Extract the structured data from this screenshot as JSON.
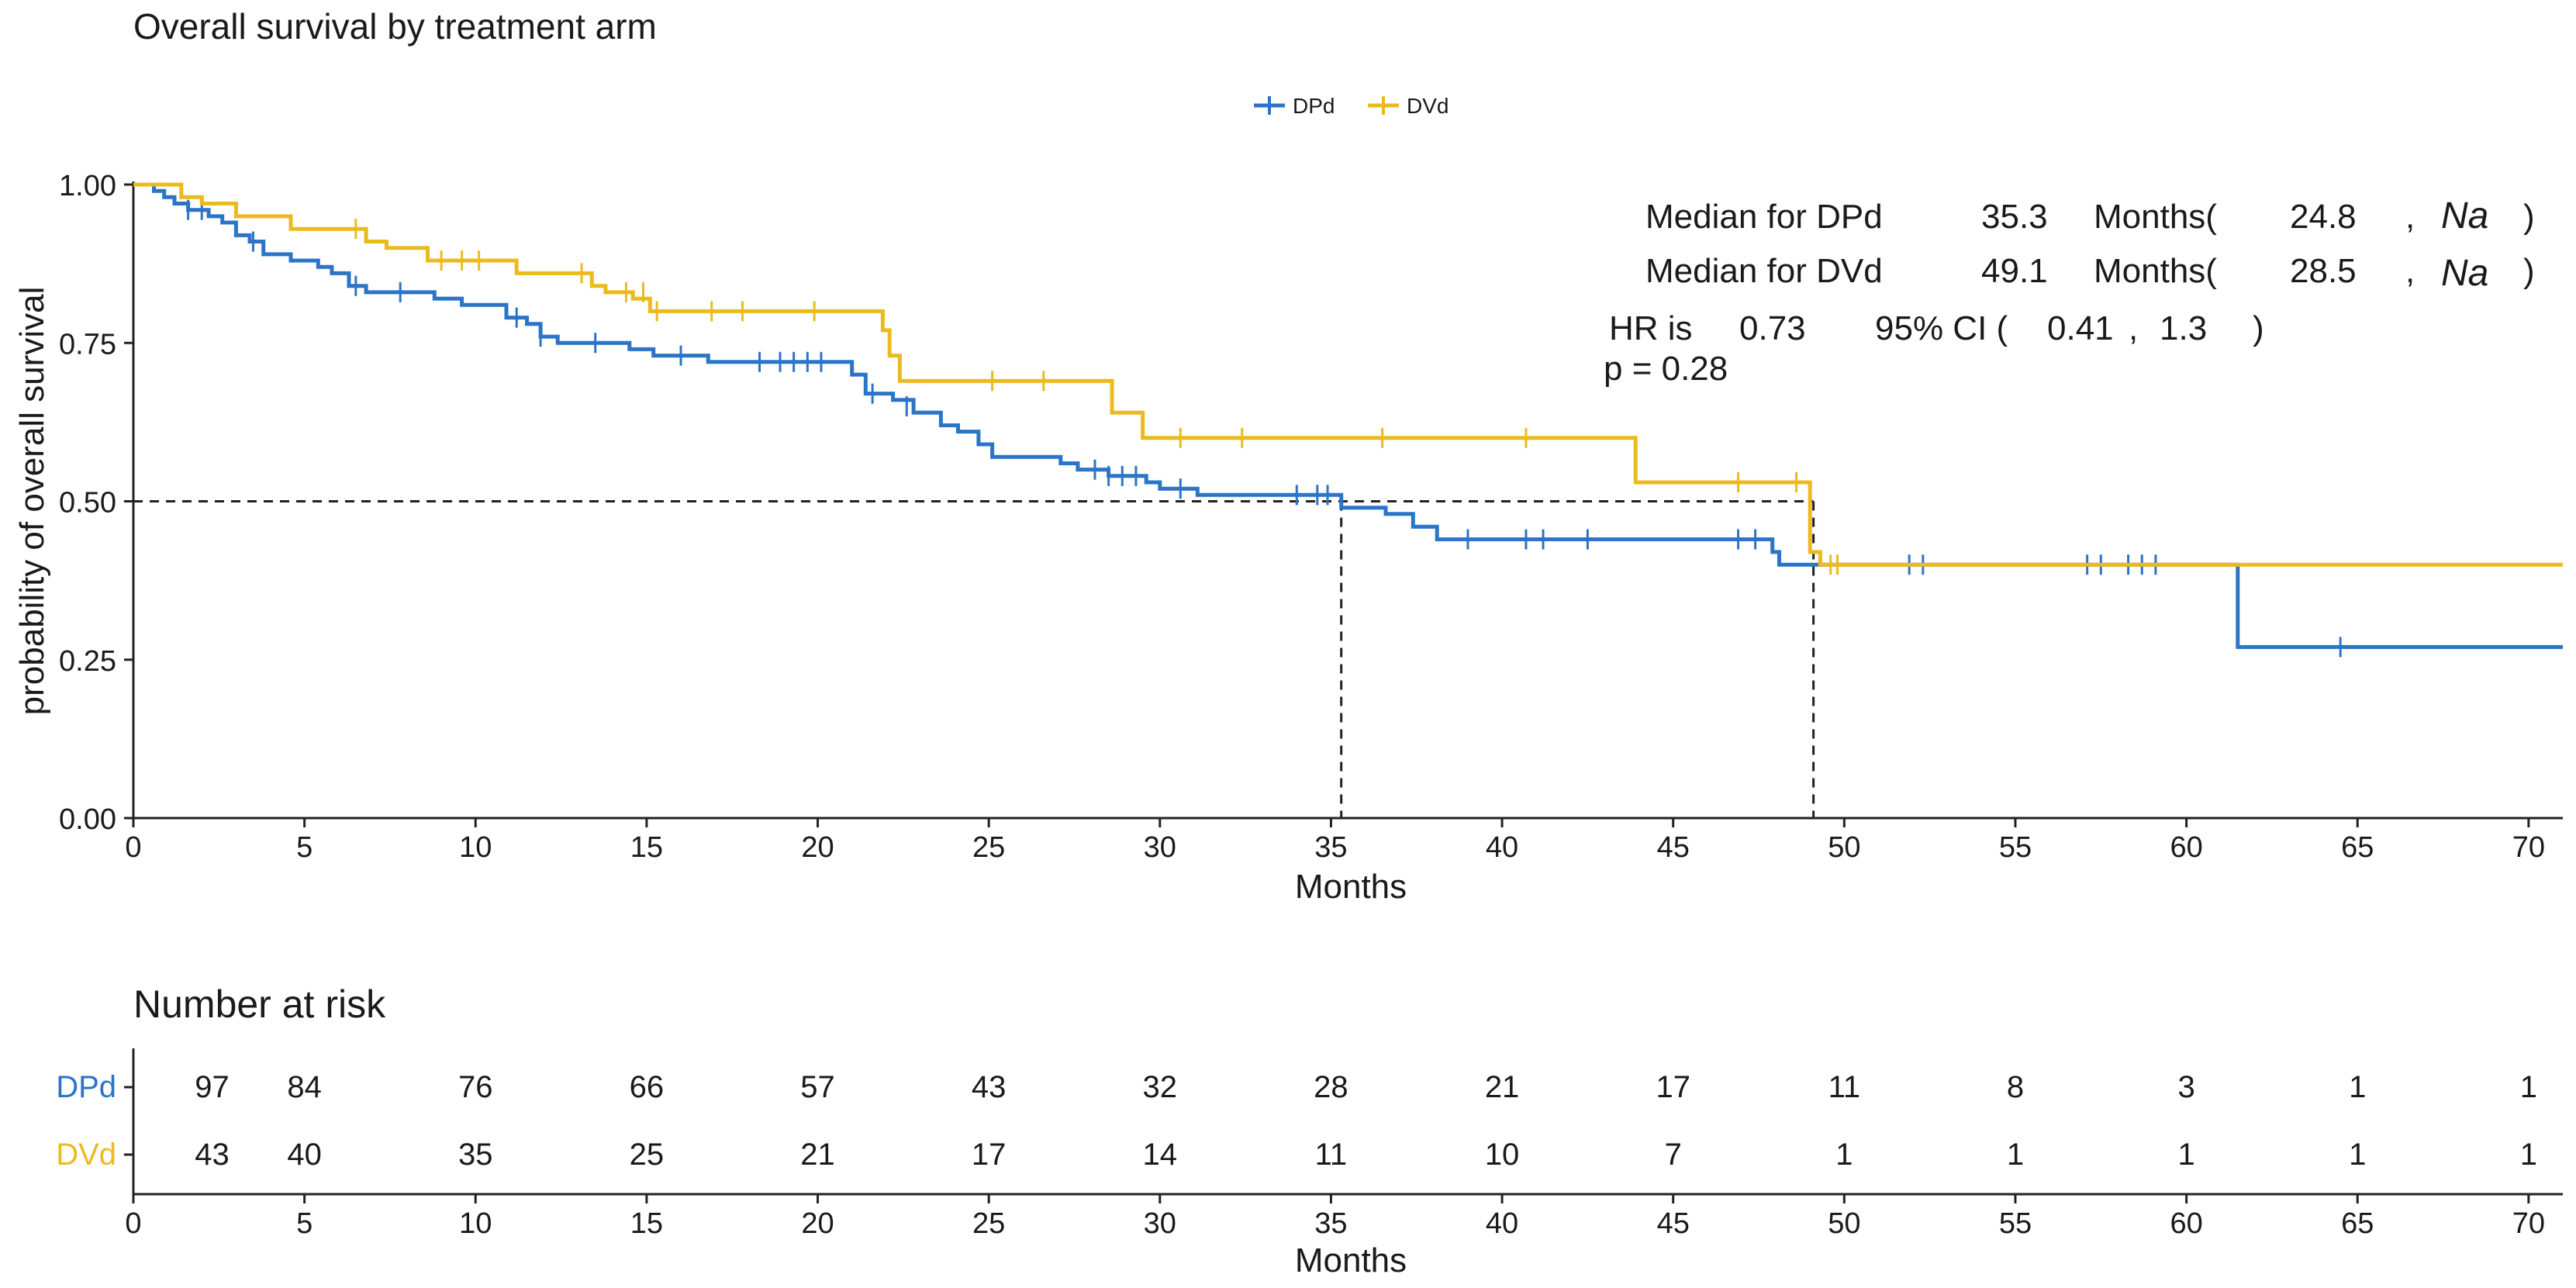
{
  "chart_data": [
    {
      "type": "line",
      "title": "Overall survival by treatment arm",
      "xlabel": "Months",
      "ylabel": "probability of overall survival",
      "xlim": [
        0,
        71
      ],
      "ylim": [
        0,
        1
      ],
      "xticks": [
        0,
        5,
        10,
        15,
        20,
        25,
        30,
        35,
        40,
        45,
        50,
        55,
        60,
        65,
        70
      ],
      "yticks": [
        "0.00",
        "0.25",
        "0.50",
        "0.75",
        "1.00"
      ],
      "grid": false,
      "legend_position": "top",
      "step": true,
      "median_reference_line": {
        "y": 0.5,
        "x_ends": [
          35.3,
          49.1
        ]
      },
      "series": [
        {
          "name": "DPd",
          "color": "#2b74c7",
          "points": [
            [
              0,
              1.0
            ],
            [
              0.6,
              0.99
            ],
            [
              0.9,
              0.98
            ],
            [
              1.2,
              0.97
            ],
            [
              1.6,
              0.96
            ],
            [
              2.2,
              0.95
            ],
            [
              2.6,
              0.94
            ],
            [
              3.0,
              0.92
            ],
            [
              3.4,
              0.91
            ],
            [
              3.8,
              0.89
            ],
            [
              4.6,
              0.88
            ],
            [
              5.4,
              0.87
            ],
            [
              5.8,
              0.86
            ],
            [
              6.3,
              0.84
            ],
            [
              6.8,
              0.83
            ],
            [
              7.8,
              0.83
            ],
            [
              8.8,
              0.82
            ],
            [
              9.6,
              0.81
            ],
            [
              10.9,
              0.79
            ],
            [
              11.5,
              0.78
            ],
            [
              11.9,
              0.76
            ],
            [
              12.4,
              0.75
            ],
            [
              14.5,
              0.74
            ],
            [
              15.2,
              0.73
            ],
            [
              16.8,
              0.72
            ],
            [
              21.0,
              0.7
            ],
            [
              21.4,
              0.67
            ],
            [
              22.2,
              0.66
            ],
            [
              22.8,
              0.64
            ],
            [
              23.6,
              0.62
            ],
            [
              24.1,
              0.61
            ],
            [
              24.7,
              0.59
            ],
            [
              25.1,
              0.57
            ],
            [
              27.1,
              0.56
            ],
            [
              27.6,
              0.55
            ],
            [
              28.5,
              0.54
            ],
            [
              29.6,
              0.53
            ],
            [
              30.0,
              0.52
            ],
            [
              31.1,
              0.51
            ],
            [
              35.3,
              0.49
            ],
            [
              36.6,
              0.48
            ],
            [
              37.4,
              0.46
            ],
            [
              38.1,
              0.44
            ],
            [
              47.9,
              0.42
            ],
            [
              48.1,
              0.4
            ],
            [
              61.5,
              0.27
            ],
            [
              71,
              0.27
            ]
          ],
          "censored": [
            [
              1.6,
              0.96
            ],
            [
              2.0,
              0.96
            ],
            [
              3.5,
              0.91
            ],
            [
              6.5,
              0.84
            ],
            [
              7.8,
              0.83
            ],
            [
              11.2,
              0.79
            ],
            [
              11.9,
              0.76
            ],
            [
              13.5,
              0.75
            ],
            [
              16.0,
              0.73
            ],
            [
              18.3,
              0.72
            ],
            [
              18.9,
              0.72
            ],
            [
              19.3,
              0.72
            ],
            [
              19.7,
              0.72
            ],
            [
              20.1,
              0.72
            ],
            [
              21.6,
              0.67
            ],
            [
              22.6,
              0.65
            ],
            [
              28.1,
              0.55
            ],
            [
              28.5,
              0.54
            ],
            [
              28.9,
              0.54
            ],
            [
              29.3,
              0.54
            ],
            [
              30.6,
              0.52
            ],
            [
              34.0,
              0.51
            ],
            [
              34.6,
              0.51
            ],
            [
              34.9,
              0.51
            ],
            [
              39.0,
              0.44
            ],
            [
              40.7,
              0.44
            ],
            [
              41.2,
              0.44
            ],
            [
              42.5,
              0.44
            ],
            [
              46.9,
              0.44
            ],
            [
              47.4,
              0.44
            ],
            [
              51.9,
              0.4
            ],
            [
              52.3,
              0.4
            ],
            [
              57.1,
              0.4
            ],
            [
              57.5,
              0.4
            ],
            [
              58.3,
              0.4
            ],
            [
              58.7,
              0.4
            ],
            [
              59.1,
              0.4
            ],
            [
              64.5,
              0.27
            ]
          ]
        },
        {
          "name": "DVd",
          "color": "#ebbb1e",
          "points": [
            [
              0,
              1.0
            ],
            [
              1.4,
              0.98
            ],
            [
              2.0,
              0.97
            ],
            [
              3.0,
              0.95
            ],
            [
              4.6,
              0.93
            ],
            [
              6.8,
              0.91
            ],
            [
              7.4,
              0.9
            ],
            [
              8.6,
              0.88
            ],
            [
              11.2,
              0.86
            ],
            [
              13.4,
              0.84
            ],
            [
              13.8,
              0.83
            ],
            [
              14.6,
              0.82
            ],
            [
              15.1,
              0.8
            ],
            [
              21.9,
              0.77
            ],
            [
              22.1,
              0.73
            ],
            [
              22.4,
              0.69
            ],
            [
              28.6,
              0.64
            ],
            [
              29.5,
              0.6
            ],
            [
              43.9,
              0.53
            ],
            [
              49.0,
              0.42
            ],
            [
              49.3,
              0.4
            ],
            [
              71,
              0.4
            ]
          ],
          "censored": [
            [
              6.5,
              0.93
            ],
            [
              9.0,
              0.88
            ],
            [
              9.6,
              0.88
            ],
            [
              10.1,
              0.88
            ],
            [
              13.1,
              0.86
            ],
            [
              14.4,
              0.83
            ],
            [
              14.9,
              0.83
            ],
            [
              15.3,
              0.8
            ],
            [
              16.9,
              0.8
            ],
            [
              17.8,
              0.8
            ],
            [
              19.9,
              0.8
            ],
            [
              25.1,
              0.69
            ],
            [
              26.6,
              0.69
            ],
            [
              30.6,
              0.6
            ],
            [
              32.4,
              0.6
            ],
            [
              36.5,
              0.6
            ],
            [
              40.7,
              0.6
            ],
            [
              46.9,
              0.53
            ],
            [
              48.6,
              0.53
            ],
            [
              49.6,
              0.4
            ],
            [
              49.8,
              0.4
            ]
          ]
        }
      ],
      "annotations": [
        {
          "label": "Median for DPd",
          "value": "35.3",
          "unit": "Months(",
          "lower": "24.8",
          "sep": ",",
          "upper": "Na",
          "close": ")"
        },
        {
          "label": "Median for DVd",
          "value": "49.1",
          "unit": "Months(",
          "lower": "28.5",
          "sep": ",",
          "upper": "Na",
          "close": ")"
        }
      ],
      "hr_text": {
        "label": "HR is",
        "value": "0.73",
        "ci_label": "95% CI (",
        "ci_lower": "0.41",
        "ci_sep": ",",
        "ci_upper": "1.3",
        "close": ")"
      },
      "p_text": "p = 0.28"
    },
    {
      "type": "table",
      "title": "Number at risk",
      "xlabel": "Months",
      "xlim": [
        0,
        71
      ],
      "xticks": [
        0,
        5,
        10,
        15,
        20,
        25,
        30,
        35,
        40,
        45,
        50,
        55,
        60,
        65,
        70
      ],
      "row_positions": [
        2.3,
        5,
        10,
        15,
        20,
        25,
        30,
        35,
        40,
        45,
        50,
        55,
        60,
        65,
        70
      ],
      "rows": [
        {
          "name": "DPd",
          "color": "#2b74c7",
          "values": [
            97,
            84,
            76,
            66,
            57,
            43,
            32,
            28,
            21,
            17,
            11,
            8,
            3,
            1,
            1
          ]
        },
        {
          "name": "DVd",
          "color": "#ebbb1e",
          "values": [
            43,
            40,
            35,
            25,
            21,
            17,
            14,
            11,
            10,
            7,
            1,
            1,
            1,
            1,
            1
          ]
        }
      ]
    }
  ]
}
